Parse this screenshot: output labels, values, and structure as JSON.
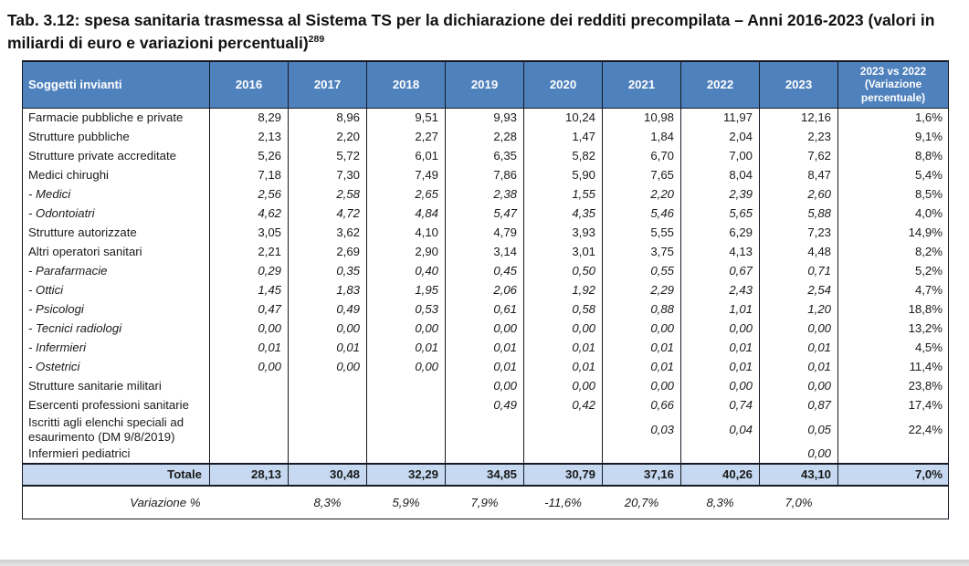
{
  "title": {
    "text": "Tab. 3.12: spesa sanitaria trasmessa al Sistema TS per la dichiarazione dei redditi precompilata – Anni 2016-2023 (valori in miliardi di euro e variazioni percentuali)",
    "footnote": "289"
  },
  "colors": {
    "header_bg": "#4f81bd",
    "header_text": "#ffffff",
    "total_row_bg": "#c6d9f1",
    "border": "#161a24"
  },
  "table": {
    "header": {
      "first_col": "Soggetti invianti",
      "years": [
        "2016",
        "2017",
        "2018",
        "2019",
        "2020",
        "2021",
        "2022",
        "2023"
      ],
      "last_col": "2023 vs 2022\n(Variazione\npercentuale)"
    },
    "rows": [
      {
        "label": "Farmacie pubbliche e private",
        "style": "normal",
        "values": [
          "8,29",
          "8,96",
          "9,51",
          "9,93",
          "10,24",
          "10,98",
          "11,97",
          "12,16"
        ],
        "pct": "1,6%"
      },
      {
        "label": "Strutture pubbliche",
        "style": "normal",
        "values": [
          "2,13",
          "2,20",
          "2,27",
          "2,28",
          "1,47",
          "1,84",
          "2,04",
          "2,23"
        ],
        "pct": "9,1%"
      },
      {
        "label": "Strutture private accreditate",
        "style": "normal",
        "values": [
          "5,26",
          "5,72",
          "6,01",
          "6,35",
          "5,82",
          "6,70",
          "7,00",
          "7,62"
        ],
        "pct": "8,8%"
      },
      {
        "label": "Medici chirughi",
        "style": "normal",
        "values": [
          "7,18",
          "7,30",
          "7,49",
          "7,86",
          "5,90",
          "7,65",
          "8,04",
          "8,47"
        ],
        "pct": "5,4%"
      },
      {
        "label": "- Medici",
        "style": "sub",
        "values": [
          "2,56",
          "2,58",
          "2,65",
          "2,38",
          "1,55",
          "2,20",
          "2,39",
          "2,60"
        ],
        "pct": "8,5%"
      },
      {
        "label": "- Odontoiatri",
        "style": "sub",
        "values": [
          "4,62",
          "4,72",
          "4,84",
          "5,47",
          "4,35",
          "5,46",
          "5,65",
          "5,88"
        ],
        "pct": "4,0%"
      },
      {
        "label": "Strutture autorizzate",
        "style": "normal",
        "values": [
          "3,05",
          "3,62",
          "4,10",
          "4,79",
          "3,93",
          "5,55",
          "6,29",
          "7,23"
        ],
        "pct": "14,9%"
      },
      {
        "label": "Altri operatori sanitari",
        "style": "normal",
        "values": [
          "2,21",
          "2,69",
          "2,90",
          "3,14",
          "3,01",
          "3,75",
          "4,13",
          "4,48"
        ],
        "pct": "8,2%"
      },
      {
        "label": "- Parafarmacie",
        "style": "sub",
        "values": [
          "0,29",
          "0,35",
          "0,40",
          "0,45",
          "0,50",
          "0,55",
          "0,67",
          "0,71"
        ],
        "pct": "5,2%"
      },
      {
        "label": "- Ottici",
        "style": "sub",
        "values": [
          "1,45",
          "1,83",
          "1,95",
          "2,06",
          "1,92",
          "2,29",
          "2,43",
          "2,54"
        ],
        "pct": "4,7%"
      },
      {
        "label": "- Psicologi",
        "style": "sub",
        "values": [
          "0,47",
          "0,49",
          "0,53",
          "0,61",
          "0,58",
          "0,88",
          "1,01",
          "1,20"
        ],
        "pct": "18,8%"
      },
      {
        "label": "- Tecnici radiologi",
        "style": "sub",
        "values": [
          "0,00",
          "0,00",
          "0,00",
          "0,00",
          "0,00",
          "0,00",
          "0,00",
          "0,00"
        ],
        "pct": "13,2%"
      },
      {
        "label": "- Infermieri",
        "style": "sub",
        "values": [
          "0,01",
          "0,01",
          "0,01",
          "0,01",
          "0,01",
          "0,01",
          "0,01",
          "0,01"
        ],
        "pct": "4,5%"
      },
      {
        "label": "- Ostetrici",
        "style": "sub",
        "values": [
          "0,00",
          "0,00",
          "0,00",
          "0,01",
          "0,01",
          "0,01",
          "0,01",
          "0,01"
        ],
        "pct": "11,4%"
      },
      {
        "label": "Strutture sanitarie militari",
        "style": "late",
        "values": [
          "",
          "",
          "",
          "0,00",
          "0,00",
          "0,00",
          "0,00",
          "0,00"
        ],
        "pct": "23,8%"
      },
      {
        "label": "Esercenti professioni sanitarie",
        "style": "late",
        "values": [
          "",
          "",
          "",
          "0,49",
          "0,42",
          "0,66",
          "0,74",
          "0,87"
        ],
        "pct": "17,4%"
      },
      {
        "label": "Iscritti agli elenchi speciali ad esaurimento (DM 9/8/2019)",
        "style": "late",
        "values": [
          "",
          "",
          "",
          "",
          "",
          "0,03",
          "0,04",
          "0,05"
        ],
        "pct": "22,4%"
      },
      {
        "label": "Infermieri pediatrici",
        "style": "late",
        "values": [
          "",
          "",
          "",
          "",
          "",
          "",
          "",
          "0,00"
        ],
        "pct": ""
      }
    ],
    "total": {
      "label": "Totale",
      "values": [
        "28,13",
        "30,48",
        "32,29",
        "34,85",
        "30,79",
        "37,16",
        "40,26",
        "43,10"
      ],
      "pct": "7,0%"
    },
    "variation": {
      "label": "Variazione %",
      "values": [
        "",
        "8,3%",
        "5,9%",
        "7,9%",
        "-11,6%",
        "20,7%",
        "8,3%",
        "7,0%"
      ],
      "pct": ""
    }
  }
}
